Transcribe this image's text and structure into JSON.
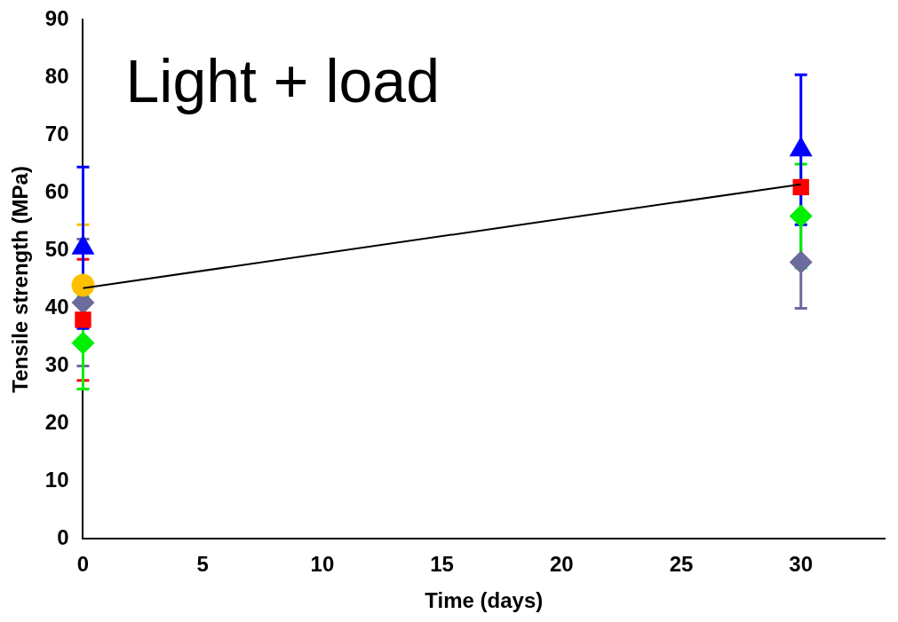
{
  "chart_data": {
    "type": "scatter",
    "xlabel": "Time (days)",
    "ylabel": "Tensile strength (MPa)",
    "annotations": [
      "Light + load"
    ],
    "x": [
      0,
      30
    ],
    "xlim": [
      0,
      33.5
    ],
    "xticks": [
      0,
      5,
      10,
      15,
      20,
      25,
      30
    ],
    "ylim": [
      0,
      90
    ],
    "yticks": [
      0,
      10,
      20,
      30,
      40,
      50,
      60,
      70,
      80,
      90
    ],
    "grid": false,
    "legend": false,
    "series": [
      {
        "color": "#6b6b9e",
        "marker": "diamond",
        "values": [
          41,
          48
        ],
        "errors": [
          11,
          8
        ]
      },
      {
        "color": "#ffc000",
        "marker": "circle",
        "values": [
          44,
          null
        ],
        "errors": [
          10.5,
          null
        ]
      },
      {
        "color": "#ff0000",
        "marker": "square",
        "values": [
          38,
          61
        ],
        "errors": [
          10.5,
          null
        ]
      },
      {
        "color": "#00ee00",
        "marker": "diamond",
        "values": [
          34,
          56
        ],
        "errors": [
          8,
          9
        ]
      },
      {
        "color": "#0000ff",
        "marker": "triangle",
        "values": [
          50.5,
          67.5
        ],
        "errors": [
          14,
          13
        ]
      },
      {
        "type": "line",
        "color": "#000000",
        "marker": "none",
        "values": [
          43.5,
          61.5
        ]
      }
    ]
  }
}
